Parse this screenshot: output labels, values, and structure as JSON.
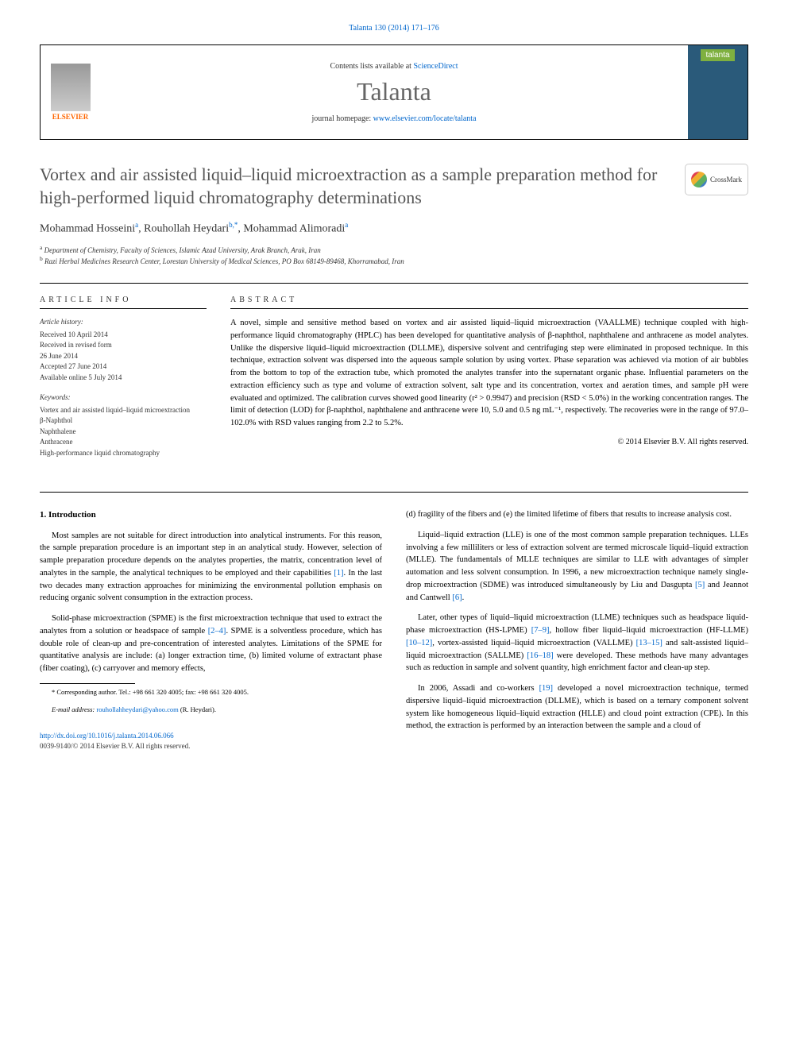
{
  "header": {
    "citation_link": "Talanta 130 (2014) 171–176",
    "contents_text": "Contents lists available at ",
    "contents_link": "ScienceDirect",
    "journal_name": "Talanta",
    "homepage_text": "journal homepage: ",
    "homepage_link": "www.elsevier.com/locate/talanta",
    "publisher": "ELSEVIER",
    "cover_label": "talanta"
  },
  "article": {
    "title": "Vortex and air assisted liquid–liquid microextraction as a sample preparation method for high-performed liquid chromatography determinations",
    "crossmark": "CrossMark",
    "authors_html": "Mohammad Hosseini",
    "author1": "Mohammad Hosseini",
    "author1_sup": "a",
    "author2": "Rouhollah Heydari",
    "author2_sup": "b,*",
    "author3": "Mohammad Alimoradi",
    "author3_sup": "a",
    "affil_a": "Department of Chemistry, Faculty of Sciences, Islamic Azad University, Arak Branch, Arak, Iran",
    "affil_b": "Razi Herbal Medicines Research Center, Lorestan University of Medical Sciences, PO Box 68149-89468, Khorramabad, Iran"
  },
  "info": {
    "heading": "ARTICLE INFO",
    "history_head": "Article history:",
    "received": "Received 10 April 2014",
    "revised1": "Received in revised form",
    "revised2": "26 June 2014",
    "accepted": "Accepted 27 June 2014",
    "available": "Available online 5 July 2014",
    "keywords_head": "Keywords:",
    "kw1": "Vortex and air assisted liquid–liquid microextraction",
    "kw2": "β-Naphthol",
    "kw3": "Naphthalene",
    "kw4": "Anthracene",
    "kw5": "High-performance liquid chromatography"
  },
  "abstract": {
    "heading": "ABSTRACT",
    "text": "A novel, simple and sensitive method based on vortex and air assisted liquid–liquid microextraction (VAALLME) technique coupled with high-performance liquid chromatography (HPLC) has been developed for quantitative analysis of β-naphthol, naphthalene and anthracene as model analytes. Unlike the dispersive liquid–liquid microextraction (DLLME), dispersive solvent and centrifuging step were eliminated in proposed technique. In this technique, extraction solvent was dispersed into the aqueous sample solution by using vortex. Phase separation was achieved via motion of air bubbles from the bottom to top of the extraction tube, which promoted the analytes transfer into the supernatant organic phase. Influential parameters on the extraction efficiency such as type and volume of extraction solvent, salt type and its concentration, vortex and aeration times, and sample pH were evaluated and optimized. The calibration curves showed good linearity (r² > 0.9947) and precision (RSD < 5.0%) in the working concentration ranges. The limit of detection (LOD) for β-naphthol, naphthalene and anthracene were 10, 5.0 and 0.5 ng mL⁻¹, respectively. The recoveries were in the range of 97.0–102.0% with RSD values ranging from 2.2 to 5.2%.",
    "copyright": "© 2014 Elsevier B.V. All rights reserved."
  },
  "body": {
    "section1_heading": "1. Introduction",
    "p1": "Most samples are not suitable for direct introduction into analytical instruments. For this reason, the sample preparation procedure is an important step in an analytical study. However, selection of sample preparation procedure depends on the analytes properties, the matrix, concentration level of analytes in the sample, the analytical techniques to be employed and their capabilities ",
    "p1_ref": "[1]",
    "p1_tail": ". In the last two decades many extraction approaches for minimizing the environmental pollution emphasis on reducing organic solvent consumption in the extraction process.",
    "p2": "Solid-phase microextraction (SPME) is the first microextraction technique that used to extract the analytes from a solution or headspace of sample ",
    "p2_ref": "[2–4]",
    "p2_tail": ". SPME is a solventless procedure, which has double role of clean-up and pre-concentration of interested analytes. Limitations of the SPME for quantitative analysis are include: (a) longer extraction time, (b) limited volume of extractant phase (fiber coating), (c) carryover and memory effects,",
    "p3": "(d) fragility of the fibers and (e) the limited lifetime of fibers that results to increase analysis cost.",
    "p4": "Liquid–liquid extraction (LLE) is one of the most common sample preparation techniques. LLEs involving a few milliliters or less of extraction solvent are termed microscale liquid–liquid extraction (MLLE). The fundamentals of MLLE techniques are similar to LLE with advantages of simpler automation and less solvent consumption. In 1996, a new microextraction technique namely single-drop microextraction (SDME) was introduced simultaneously by Liu and Dasgupta ",
    "p4_ref1": "[5]",
    "p4_mid": " and Jeannot and Cantwell ",
    "p4_ref2": "[6]",
    "p4_tail": ".",
    "p5": "Later, other types of liquid–liquid microextraction (LLME) techniques such as headspace liquid-phase microextraction (HS-LPME) ",
    "p5_ref1": "[7–9]",
    "p5_a": ", hollow fiber liquid–liquid microextraction (HF-LLME) ",
    "p5_ref2": "[10–12]",
    "p5_b": ", vortex-assisted liquid–liquid microextraction (VALLME) ",
    "p5_ref3": "[13–15]",
    "p5_c": " and salt-assisted liquid–liquid microextraction (SALLME) ",
    "p5_ref4": "[16–18]",
    "p5_tail": " were developed. These methods have many advantages such as reduction in sample and solvent quantity, high enrichment factor and clean-up step.",
    "p6": "In 2006, Assadi and co-workers ",
    "p6_ref": "[19]",
    "p6_tail": " developed a novel microextraction technique, termed dispersive liquid–liquid microextraction (DLLME), which is based on a ternary component solvent system like homogeneous liquid–liquid extraction (HLLE) and cloud point extraction (CPE). In this method, the extraction is performed by an interaction between the sample and a cloud of"
  },
  "footnote": {
    "corr": "* Corresponding author. Tel.: +98 661 320 4005; fax: +98 661 320 4005.",
    "email_label": "E-mail address: ",
    "email": "rouhollahheydari@yahoo.com",
    "email_name": " (R. Heydari)."
  },
  "footer": {
    "doi": "http://dx.doi.org/10.1016/j.talanta.2014.06.066",
    "issn": "0039-9140/© 2014 Elsevier B.V. All rights reserved."
  },
  "colors": {
    "link": "#0066cc",
    "title_gray": "#555555",
    "journal_gray": "#666666",
    "elsevier_orange": "#ff6600",
    "cover_blue": "#2a5a7a",
    "cover_green": "#7fb040"
  }
}
